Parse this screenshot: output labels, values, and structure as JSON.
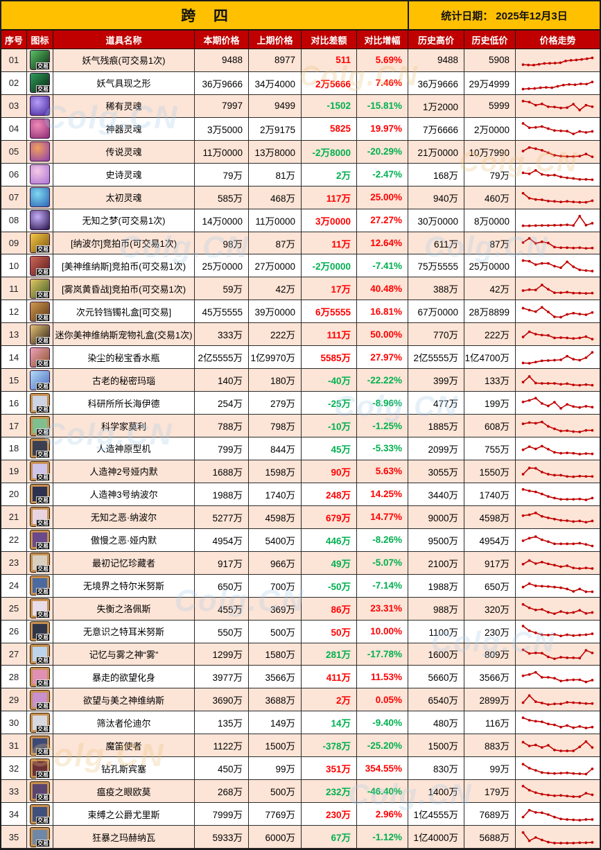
{
  "header": {
    "title": "跨 四",
    "stat_date_label": "统计日期：",
    "stat_date": "2025年12月3日"
  },
  "columns": [
    "序号",
    "图标",
    "道具名称",
    "本期价格",
    "上期价格",
    "对比差额",
    "对比增幅",
    "历史高价",
    "历史低价",
    "价格走势"
  ],
  "badge_label": "交易",
  "watermark": {
    "text": "Colg.CN"
  },
  "colors": {
    "accent_yellow": "#FFC000",
    "header_red": "#C00000",
    "row_alt": "#FCE4D6",
    "up_red": "#FF0000",
    "down_green": "#00B050",
    "trend_line": "#C00000",
    "watermark_blue": "#A9CCE9",
    "watermark_gold": "#EDC27A"
  },
  "rows": [
    {
      "no": "01",
      "name": "妖气残痕(可交易1次)",
      "cur": "9488",
      "prev": "8977",
      "diff": "511",
      "dd": "up",
      "pct": "5.69%",
      "pd": "up",
      "high": "9488",
      "low": "5908",
      "icon": {
        "shape": "sq",
        "c1": "#59c264",
        "c2": "#0b2a12",
        "badge": true
      },
      "trend": [
        22,
        20,
        19,
        24,
        30,
        31,
        32,
        34,
        46,
        50,
        52,
        56,
        60,
        66
      ]
    },
    {
      "no": "02",
      "name": "妖气具现之形",
      "cur": "36万9666",
      "prev": "34万4000",
      "diff": "2万5666",
      "dd": "up",
      "pct": "7.46%",
      "pd": "up",
      "high": "36万9666",
      "low": "29万4999",
      "icon": {
        "shape": "sq",
        "c1": "#2f9e5a",
        "c2": "#07230f",
        "badge": true
      },
      "trend": [
        12,
        15,
        16,
        21,
        23,
        21,
        30,
        38,
        42,
        40,
        46,
        44,
        58
      ]
    },
    {
      "no": "03",
      "name": "稀有灵魂",
      "cur": "7997",
      "prev": "9499",
      "diff": "-1502",
      "dd": "down",
      "pct": "-15.81%",
      "pd": "down",
      "high": "1万2000",
      "low": "5999",
      "icon": {
        "shape": "orb",
        "c1": "#b79cf7",
        "c2": "#42259c",
        "badge": false
      },
      "trend": [
        82,
        76,
        56,
        64,
        46,
        44,
        38,
        40,
        62,
        24,
        56,
        46
      ]
    },
    {
      "no": "04",
      "name": "神器灵魂",
      "cur": "3万5000",
      "prev": "2万9175",
      "diff": "5825",
      "dd": "up",
      "pct": "19.97%",
      "pd": "up",
      "high": "7万6666",
      "low": "2万0000",
      "icon": {
        "shape": "orb",
        "c1": "#f08ab8",
        "c2": "#8c2a74",
        "badge": false
      },
      "trend": [
        86,
        58,
        60,
        66,
        52,
        40,
        38,
        36,
        18,
        34,
        28,
        34
      ]
    },
    {
      "no": "05",
      "name": "传说灵魂",
      "cur": "11万0000",
      "prev": "13万8000",
      "diff": "-2万8000",
      "dd": "down",
      "pct": "-20.29%",
      "pd": "down",
      "high": "21万0000",
      "low": "10万7990",
      "icon": {
        "shape": "orb",
        "c1": "#f2a05c",
        "c2": "#8d3fae",
        "badge": false
      },
      "trend": [
        55,
        78,
        70,
        60,
        44,
        28,
        22,
        20,
        20,
        22,
        36,
        18
      ]
    },
    {
      "no": "06",
      "name": "史诗灵魂",
      "cur": "79万",
      "prev": "81万",
      "diff": "2万",
      "dd": "down",
      "pct": "-2.47%",
      "pd": "down",
      "high": "168万",
      "low": "79万",
      "icon": {
        "shape": "orb",
        "c1": "#f7c8e4",
        "c2": "#a974d6",
        "badge": false
      },
      "trend": [
        62,
        56,
        78,
        52,
        46,
        48,
        36,
        30,
        26,
        20,
        20,
        18
      ]
    },
    {
      "no": "07",
      "name": "太初灵魂",
      "cur": "585万",
      "prev": "468万",
      "diff": "117万",
      "dd": "up",
      "pct": "25.00%",
      "pd": "up",
      "high": "940万",
      "low": "460万",
      "icon": {
        "shape": "orb",
        "c1": "#7fd8f0",
        "c2": "#2a62b4",
        "badge": false
      },
      "trend": [
        78,
        46,
        38,
        36,
        28,
        26,
        22,
        26,
        22,
        20,
        20,
        30
      ]
    },
    {
      "no": "08",
      "name": "无知之梦(可交易1次)",
      "cur": "14万0000",
      "prev": "11万0000",
      "diff": "3万0000",
      "dd": "up",
      "pct": "27.27%",
      "pd": "up",
      "high": "30万0000",
      "low": "8万0000",
      "icon": {
        "shape": "orb",
        "c1": "#c5aef8",
        "c2": "#241048",
        "badge": false
      },
      "trend": [
        16,
        16,
        17,
        18,
        18,
        19,
        20,
        22,
        18,
        78,
        20,
        32
      ]
    },
    {
      "no": "09",
      "name": "[纳波尔]竞拍币(可交易1次)",
      "cur": "98万",
      "prev": "87万",
      "diff": "11万",
      "dd": "up",
      "pct": "12.64%",
      "pd": "up",
      "high": "611万",
      "low": "87万",
      "icon": {
        "shape": "sq",
        "c1": "#f6c945",
        "c2": "#7c520e",
        "badge": true
      },
      "trend": [
        56,
        82,
        50,
        60,
        52,
        26,
        22,
        22,
        20,
        22,
        18,
        20
      ]
    },
    {
      "no": "10",
      "name": "[美神维纳斯]竞拍币(可交易1次)",
      "cur": "25万0000",
      "prev": "27万0000",
      "diff": "-2万0000",
      "dd": "down",
      "pct": "-7.41%",
      "pd": "down",
      "high": "75万5555",
      "low": "25万0000",
      "icon": {
        "shape": "sq",
        "c1": "#d06858",
        "c2": "#58181a",
        "badge": true
      },
      "trend": [
        82,
        78,
        56,
        64,
        64,
        46,
        36,
        74,
        42,
        22,
        18,
        14
      ]
    },
    {
      "no": "11",
      "name": "[雾岚黄昏战]竞拍币(可交易1次)",
      "cur": "59万",
      "prev": "42万",
      "diff": "17万",
      "dd": "up",
      "pct": "40.48%",
      "pd": "up",
      "high": "388万",
      "low": "42万",
      "icon": {
        "shape": "sq",
        "c1": "#e2c862",
        "c2": "#3c5a26",
        "badge": true
      },
      "trend": [
        36,
        42,
        40,
        72,
        44,
        22,
        22,
        26,
        20,
        20,
        18,
        20
      ]
    },
    {
      "no": "12",
      "name": "次元铃铛镯礼盒[可交易]",
      "cur": "45万5555",
      "prev": "39万0000",
      "diff": "6万5555",
      "dd": "up",
      "pct": "16.81%",
      "pd": "up",
      "high": "67万0000",
      "low": "28万8899",
      "icon": {
        "shape": "sq",
        "c1": "#d09a50",
        "c2": "#5c3410",
        "badge": true
      },
      "trend": [
        70,
        58,
        48,
        76,
        46,
        14,
        12,
        30,
        38,
        32,
        28,
        42
      ]
    },
    {
      "no": "13",
      "name": "迷你美神维纳斯宠物礼盒(交易1次)",
      "cur": "333万",
      "prev": "222万",
      "diff": "111万",
      "dd": "up",
      "pct": "50.00%",
      "pd": "up",
      "high": "770万",
      "low": "222万",
      "icon": {
        "shape": "sq",
        "c1": "#e6c478",
        "c2": "#2c2014",
        "badge": true
      },
      "trend": [
        32,
        66,
        50,
        44,
        42,
        26,
        28,
        26,
        22,
        26,
        34,
        18
      ]
    },
    {
      "no": "14",
      "name": "染尘的秘宝香水瓶",
      "cur": "2亿5555万",
      "prev": "1亿9970万",
      "diff": "5585万",
      "dd": "up",
      "pct": "27.97%",
      "pd": "up",
      "high": "2亿5555万",
      "low": "1亿4700万",
      "icon": {
        "shape": "sq",
        "c1": "#f0a0bc",
        "c2": "#8a5424",
        "badge": true
      },
      "trend": [
        12,
        10,
        18,
        26,
        28,
        30,
        32,
        56,
        36,
        30,
        46,
        80
      ]
    },
    {
      "no": "15",
      "name": "古老的秘密玛瑙",
      "cur": "140万",
      "prev": "180万",
      "diff": "-40万",
      "dd": "down",
      "pct": "-22.22%",
      "pd": "down",
      "high": "399万",
      "low": "133万",
      "icon": {
        "shape": "sq",
        "c1": "#b4dcf8",
        "c2": "#4a6cc0",
        "badge": true
      },
      "trend": [
        36,
        72,
        30,
        28,
        28,
        28,
        22,
        26,
        18,
        16,
        20,
        16
      ]
    },
    {
      "no": "16",
      "name": "科研所所长海伊德",
      "cur": "254万",
      "prev": "279万",
      "diff": "-25万",
      "dd": "down",
      "pct": "-8.96%",
      "pd": "down",
      "high": "477万",
      "low": "199万",
      "icon": {
        "shape": "card",
        "c1": "#c89050",
        "c2": "#cdd4e4",
        "badge": true
      },
      "trend": [
        56,
        66,
        80,
        46,
        30,
        54,
        14,
        40,
        26,
        20,
        28,
        22
      ]
    },
    {
      "no": "17",
      "name": "科学家莫利",
      "cur": "788万",
      "prev": "798万",
      "diff": "-10万",
      "dd": "down",
      "pct": "-1.25%",
      "pd": "down",
      "high": "1885万",
      "low": "608万",
      "icon": {
        "shape": "card",
        "c1": "#c89050",
        "c2": "#7fbf8f",
        "badge": true
      },
      "trend": [
        62,
        70,
        66,
        74,
        46,
        30,
        16,
        18,
        12,
        10,
        20,
        20
      ]
    },
    {
      "no": "18",
      "name": "人造神原型机",
      "cur": "799万",
      "prev": "844万",
      "diff": "45万",
      "dd": "down",
      "pct": "-5.33%",
      "pd": "down",
      "high": "2099万",
      "low": "755万",
      "icon": {
        "shape": "card",
        "c1": "#c89050",
        "c2": "#3a3f52",
        "badge": true
      },
      "trend": [
        42,
        62,
        48,
        66,
        46,
        26,
        20,
        22,
        20,
        14,
        18,
        16
      ]
    },
    {
      "no": "19",
      "name": "人造神2号娅内默",
      "cur": "1688万",
      "prev": "1598万",
      "diff": "90万",
      "dd": "up",
      "pct": "5.63%",
      "pd": "up",
      "high": "3055万",
      "low": "1550万",
      "icon": {
        "shape": "card",
        "c1": "#c89050",
        "c2": "#cfc4ea",
        "badge": true
      },
      "trend": [
        32,
        72,
        70,
        46,
        32,
        26,
        26,
        18,
        16,
        20,
        18,
        18
      ]
    },
    {
      "no": "20",
      "name": "人造神3号纳波尔",
      "cur": "1988万",
      "prev": "1740万",
      "diff": "248万",
      "dd": "up",
      "pct": "14.25%",
      "pd": "up",
      "high": "3440万",
      "low": "1740万",
      "icon": {
        "shape": "card",
        "c1": "#c89050",
        "c2": "#2c3250",
        "badge": true
      },
      "trend": [
        82,
        72,
        66,
        52,
        36,
        26,
        18,
        18,
        18,
        20,
        14,
        26
      ]
    },
    {
      "no": "21",
      "name": "无知之恶·纳波尔",
      "cur": "5277万",
      "prev": "4598万",
      "diff": "679万",
      "dd": "up",
      "pct": "14.77%",
      "pd": "up",
      "high": "9000万",
      "low": "4598万",
      "icon": {
        "shape": "card",
        "c1": "#c89050",
        "c2": "#e8d4e0",
        "badge": true
      },
      "trend": [
        60,
        66,
        78,
        56,
        46,
        38,
        30,
        28,
        22,
        26,
        18,
        26
      ]
    },
    {
      "no": "22",
      "name": "傲慢之恶·娅内默",
      "cur": "4954万",
      "prev": "5400万",
      "diff": "446万",
      "dd": "down",
      "pct": "-8.26%",
      "pd": "down",
      "high": "9500万",
      "low": "4954万",
      "icon": {
        "shape": "card",
        "c1": "#c89050",
        "c2": "#6a4a8a",
        "badge": true
      },
      "trend": [
        46,
        62,
        72,
        52,
        40,
        26,
        26,
        26,
        26,
        30,
        22,
        12
      ]
    },
    {
      "no": "23",
      "name": "最初记忆珍藏者",
      "cur": "917万",
      "prev": "966万",
      "diff": "49万",
      "dd": "down",
      "pct": "-5.07%",
      "pd": "down",
      "high": "2100万",
      "low": "917万",
      "icon": {
        "shape": "card",
        "c1": "#c89050",
        "c2": "#d8cfc0",
        "badge": true
      },
      "trend": [
        42,
        66,
        46,
        56,
        44,
        36,
        26,
        32,
        18,
        14,
        18,
        14
      ]
    },
    {
      "no": "24",
      "name": "无境界之特尔米努斯",
      "cur": "650万",
      "prev": "700万",
      "diff": "-50万",
      "dd": "down",
      "pct": "-7.14%",
      "pd": "down",
      "high": "1988万",
      "low": "650万",
      "icon": {
        "shape": "card",
        "c1": "#c89050",
        "c2": "#4a6aa0",
        "badge": true
      },
      "trend": [
        42,
        64,
        50,
        48,
        46,
        42,
        38,
        30,
        14,
        30,
        12,
        12
      ]
    },
    {
      "no": "25",
      "name": "失衡之洛佩斯",
      "cur": "455万",
      "prev": "369万",
      "diff": "86万",
      "dd": "up",
      "pct": "23.31%",
      "pd": "up",
      "high": "988万",
      "low": "320万",
      "icon": {
        "shape": "card",
        "c1": "#c89050",
        "c2": "#e8dce8",
        "badge": true
      },
      "trend": [
        78,
        56,
        42,
        46,
        28,
        18,
        32,
        22,
        26,
        40,
        20,
        26
      ]
    },
    {
      "no": "26",
      "name": "无意识之特耳米努斯",
      "cur": "550万",
      "prev": "500万",
      "diff": "50万",
      "dd": "up",
      "pct": "10.00%",
      "pd": "up",
      "high": "1100万",
      "low": "230万",
      "icon": {
        "shape": "card",
        "c1": "#c89050",
        "c2": "#30364a",
        "badge": true
      },
      "trend": [
        86,
        56,
        42,
        30,
        28,
        32,
        22,
        30,
        24,
        28,
        30,
        36
      ]
    },
    {
      "no": "27",
      "name": "记忆与雾之神“雾”",
      "cur": "1299万",
      "prev": "1580万",
      "diff": "281万",
      "dd": "down",
      "pct": "-17.78%",
      "pd": "down",
      "high": "1600万",
      "low": "809万",
      "icon": {
        "shape": "card",
        "c1": "#c89050",
        "c2": "#bcd4ec",
        "badge": true
      },
      "trend": [
        76,
        52,
        56,
        54,
        30,
        18,
        28,
        24,
        24,
        22,
        72,
        56
      ]
    },
    {
      "no": "28",
      "name": "暴走的欲望化身",
      "cur": "3977万",
      "prev": "3566万",
      "diff": "411万",
      "dd": "up",
      "pct": "11.53%",
      "pd": "up",
      "high": "5660万",
      "low": "3566万",
      "icon": {
        "shape": "card",
        "c1": "#c89050",
        "c2": "#e090b4",
        "badge": true
      },
      "trend": [
        56,
        64,
        78,
        46,
        46,
        40,
        22,
        28,
        30,
        30,
        16,
        28
      ]
    },
    {
      "no": "29",
      "name": "欲望与美之神维纳斯",
      "cur": "3690万",
      "prev": "3688万",
      "diff": "2万",
      "dd": "up",
      "pct": "0.05%",
      "pd": "up",
      "high": "6540万",
      "low": "2899万",
      "icon": {
        "shape": "card",
        "c1": "#c89050",
        "c2": "#c890cc",
        "badge": true
      },
      "trend": [
        30,
        76,
        36,
        28,
        18,
        22,
        22,
        32,
        30,
        28,
        24,
        24
      ]
    },
    {
      "no": "30",
      "name": "筛汰者伦迪尔",
      "cur": "135万",
      "prev": "149万",
      "diff": "14万",
      "dd": "down",
      "pct": "-9.40%",
      "pd": "down",
      "high": "480万",
      "low": "116万",
      "icon": {
        "shape": "card",
        "c1": "#c89050",
        "c2": "#d8d8e0",
        "badge": true
      },
      "trend": [
        80,
        64,
        58,
        54,
        40,
        34,
        20,
        30,
        16,
        24,
        14,
        20
      ]
    },
    {
      "no": "31",
      "name": "魔笛使者",
      "cur": "1122万",
      "prev": "1500万",
      "diff": "-378万",
      "dd": "down",
      "pct": "-25.20%",
      "pd": "down",
      "high": "1500万",
      "low": "883万",
      "icon": {
        "shape": "card",
        "c1": "#c89050",
        "c2": "#3c4a78",
        "badge": true
      },
      "trend": [
        70,
        46,
        52,
        36,
        50,
        20,
        14,
        14,
        14,
        40,
        74,
        36
      ]
    },
    {
      "no": "32",
      "name": "钻孔斯宾塞",
      "cur": "450万",
      "prev": "99万",
      "diff": "351万",
      "dd": "up",
      "pct": "354.55%",
      "pd": "up",
      "high": "830万",
      "low": "99万",
      "icon": {
        "shape": "card",
        "c1": "#c89050",
        "c2": "#6a3038",
        "badge": true
      },
      "trend": [
        76,
        50,
        36,
        22,
        18,
        16,
        18,
        20,
        16,
        14,
        12,
        46
      ]
    },
    {
      "no": "33",
      "name": "瘟疫之眼欧莫",
      "cur": "268万",
      "prev": "500万",
      "diff": "232万",
      "dd": "down",
      "pct": "-46.40%",
      "pd": "down",
      "high": "1400万",
      "low": "179万",
      "icon": {
        "shape": "card",
        "c1": "#c89050",
        "c2": "#5a4470",
        "badge": true
      },
      "trend": [
        82,
        56,
        40,
        30,
        24,
        20,
        22,
        18,
        14,
        14,
        36,
        26
      ]
    },
    {
      "no": "34",
      "name": "束缚之公爵尤里斯",
      "cur": "7999万",
      "prev": "7769万",
      "diff": "230万",
      "dd": "up",
      "pct": "2.96%",
      "pd": "up",
      "high": "1亿4555万",
      "low": "7689万",
      "icon": {
        "shape": "card",
        "c1": "#c89050",
        "c2": "#40507c",
        "badge": true
      },
      "trend": [
        30,
        74,
        60,
        58,
        46,
        30,
        18,
        14,
        12,
        10,
        14,
        14
      ]
    },
    {
      "no": "35",
      "name": "狂暴之玛赫纳瓦",
      "cur": "5933万",
      "prev": "6000万",
      "diff": "67万",
      "dd": "down",
      "pct": "-1.12%",
      "pd": "down",
      "high": "1亿4000万",
      "low": "5688万",
      "icon": {
        "shape": "card",
        "c1": "#c89050",
        "c2": "#7088a8",
        "badge": true
      },
      "trend": [
        78,
        24,
        46,
        30,
        16,
        10,
        10,
        10,
        10,
        12,
        12,
        14
      ]
    }
  ]
}
